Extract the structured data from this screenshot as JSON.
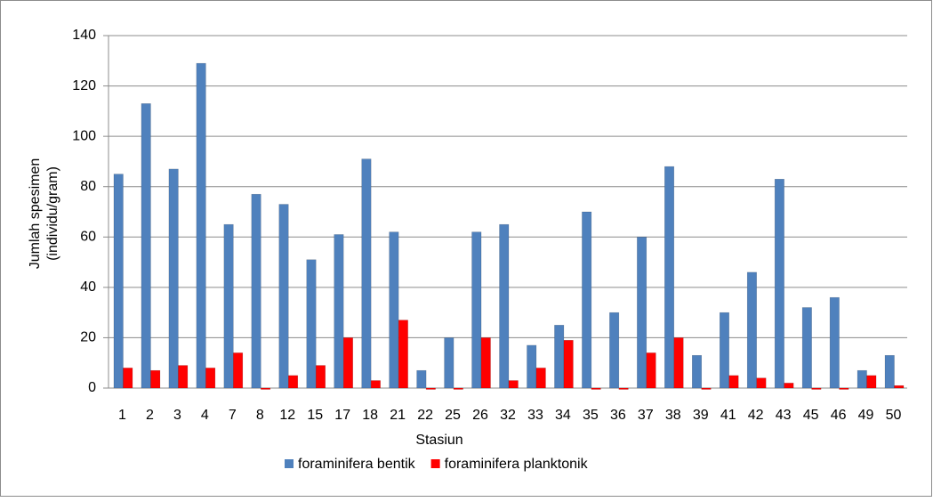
{
  "chart_data": {
    "type": "bar",
    "x_label": "Stasiun",
    "y_label": [
      "Jumlah spesimen",
      "(individu/gram)"
    ],
    "categories": [
      "1",
      "2",
      "3",
      "4",
      "7",
      "8",
      "12",
      "15",
      "17",
      "18",
      "21",
      "22",
      "25",
      "26",
      "32",
      "33",
      "34",
      "35",
      "36",
      "37",
      "38",
      "39",
      "41",
      "42",
      "43",
      "45",
      "46",
      "49",
      "50"
    ],
    "series": [
      {
        "name": "foraminifera bentik",
        "color": "#4f81bd",
        "values": [
          85,
          113,
          87,
          129,
          65,
          77,
          73,
          51,
          61,
          91,
          62,
          7,
          20,
          62,
          65,
          17,
          25,
          70,
          30,
          60,
          88,
          13,
          30,
          46,
          83,
          32,
          36,
          7,
          13
        ]
      },
      {
        "name": "foraminifera planktonik",
        "color": "#ff0000",
        "values": [
          8,
          7,
          9,
          8,
          14,
          0,
          5,
          9,
          20,
          3,
          27,
          0,
          0,
          20,
          3,
          8,
          19,
          0,
          0,
          14,
          20,
          0,
          5,
          4,
          2,
          0,
          0,
          5,
          1
        ]
      }
    ],
    "ylim": [
      0,
      140
    ],
    "yticks": [
      0,
      20,
      40,
      60,
      80,
      100,
      120,
      140
    ],
    "grid": true,
    "legend": "bottom"
  }
}
